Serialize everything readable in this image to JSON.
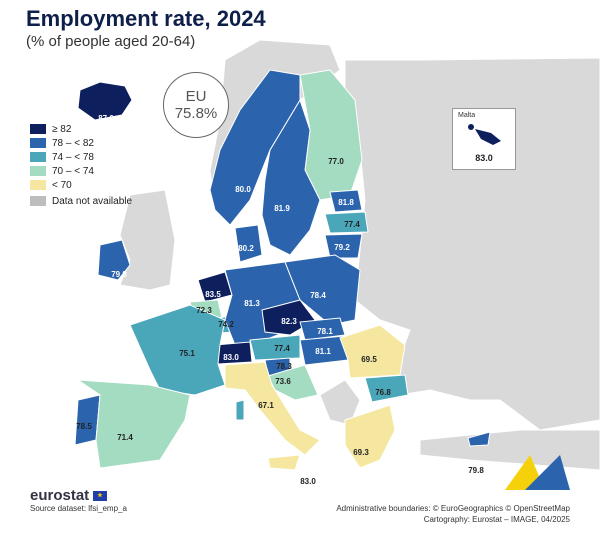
{
  "title": "Employment rate, 2024",
  "subtitle": "(% of people aged 20-64)",
  "eu_badge": {
    "label": "EU",
    "value": "75.8%"
  },
  "legend": [
    {
      "label": "≥ 82",
      "color": "#0e1f5e"
    },
    {
      "label": "78 – < 82",
      "color": "#2b63ad"
    },
    {
      "label": "74 – < 78",
      "color": "#4aa7b9"
    },
    {
      "label": "70 – < 74",
      "color": "#a3dcc0"
    },
    {
      "label": "< 70",
      "color": "#f5e7a0"
    }
  ],
  "legend_na": {
    "label": "Data not available",
    "color": "#bdbdbd"
  },
  "malta_inset": {
    "name": "Malta",
    "value": "83.0"
  },
  "values": {
    "IS": "87.0",
    "FI": "77.0",
    "SE": "81.9",
    "NO": "80.0",
    "EE": "81.8",
    "LV": "77.4",
    "LT": "79.2",
    "DK": "80.2",
    "IE": "79.8",
    "NL": "83.5",
    "BE": "72.3",
    "LU": "74.2",
    "DE": "81.3",
    "PL": "78.4",
    "CZ": "82.3",
    "SK": "78.1",
    "HU": "81.1",
    "AT": "77.4",
    "SI": "78.3",
    "HR": "73.6",
    "CH": "83.0",
    "FR": "75.1",
    "IT": "67.1",
    "RO": "69.5",
    "BG": "76.8",
    "EL": "69.3",
    "CY": "79.8",
    "PT": "78.5",
    "ES": "71.4",
    "MT2": "83.0"
  },
  "footer": {
    "brand": "eurostat",
    "source": "Source dataset: lfsi_emp_a",
    "boundaries": "Administrative boundaries: © EuroGeographics © OpenStreetMap",
    "cartography": "Cartography: Eurostat – IMAGE, 04/2025"
  }
}
